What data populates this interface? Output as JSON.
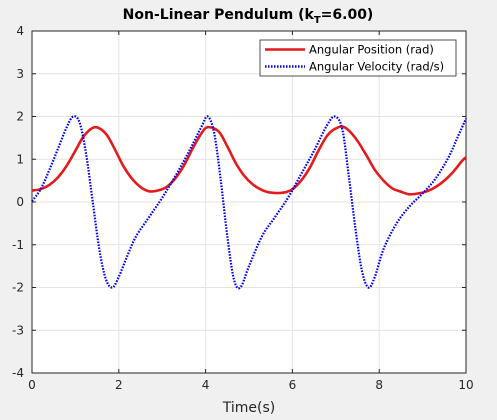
{
  "chart_data": {
    "type": "line",
    "title": "Non-Linear Pendulum (k",
    "title_subscript": "T",
    "title_suffix": "=6.00)",
    "xlabel": "Time(s)",
    "ylabel": "",
    "xlim": [
      0,
      10
    ],
    "ylim": [
      -4,
      4
    ],
    "xticks": [
      0,
      2,
      4,
      6,
      8,
      10
    ],
    "yticks": [
      -4,
      -3,
      -2,
      -1,
      0,
      1,
      2,
      3,
      4
    ],
    "grid": true,
    "legend_position": "top-right",
    "series": [
      {
        "name": "Angular Position (rad)",
        "color": "#e41a1c",
        "style": "solid",
        "x": [
          0,
          0.2,
          0.4,
          0.6,
          0.8,
          1.0,
          1.2,
          1.45,
          1.7,
          1.9,
          2.1,
          2.3,
          2.5,
          2.7,
          2.9,
          3.1,
          3.3,
          3.5,
          3.7,
          3.9,
          4.05,
          4.3,
          4.5,
          4.7,
          4.9,
          5.1,
          5.3,
          5.5,
          5.8,
          6.0,
          6.2,
          6.4,
          6.6,
          6.8,
          7.0,
          7.2,
          7.45,
          7.7,
          7.9,
          8.1,
          8.3,
          8.5,
          8.7,
          8.9,
          9.1,
          9.3,
          9.5,
          9.7,
          9.9,
          10.0
        ],
        "y": [
          0.27,
          0.3,
          0.4,
          0.58,
          0.85,
          1.2,
          1.55,
          1.75,
          1.6,
          1.25,
          0.85,
          0.55,
          0.35,
          0.25,
          0.27,
          0.35,
          0.55,
          0.85,
          1.25,
          1.6,
          1.75,
          1.65,
          1.3,
          0.9,
          0.6,
          0.4,
          0.28,
          0.22,
          0.22,
          0.3,
          0.5,
          0.8,
          1.2,
          1.55,
          1.72,
          1.75,
          1.5,
          1.1,
          0.75,
          0.5,
          0.32,
          0.24,
          0.18,
          0.2,
          0.25,
          0.35,
          0.5,
          0.7,
          0.95,
          1.05
        ]
      },
      {
        "name": "Angular Velocity (rad/s)",
        "color": "#0000ee",
        "style": "dotted",
        "x": [
          0,
          0.2,
          0.4,
          0.6,
          0.8,
          0.95,
          1.1,
          1.25,
          1.4,
          1.55,
          1.7,
          1.85,
          2.0,
          2.2,
          2.4,
          2.7,
          3.0,
          3.3,
          3.6,
          3.9,
          4.05,
          4.2,
          4.35,
          4.5,
          4.65,
          4.8,
          5.0,
          5.3,
          5.6,
          5.9,
          6.2,
          6.5,
          6.8,
          6.98,
          7.15,
          7.3,
          7.45,
          7.6,
          7.75,
          7.9,
          8.1,
          8.4,
          8.7,
          9.0,
          9.3,
          9.6,
          9.8,
          10.0
        ],
        "y": [
          0.02,
          0.3,
          0.75,
          1.25,
          1.75,
          2.0,
          1.85,
          1.1,
          0.0,
          -1.1,
          -1.8,
          -2.0,
          -1.75,
          -1.25,
          -0.8,
          -0.35,
          0.1,
          0.6,
          1.15,
          1.75,
          2.0,
          1.6,
          0.5,
          -0.8,
          -1.8,
          -2.0,
          -1.5,
          -0.8,
          -0.35,
          0.1,
          0.65,
          1.2,
          1.8,
          2.0,
          1.7,
          0.6,
          -0.6,
          -1.6,
          -2.0,
          -1.75,
          -1.1,
          -0.5,
          -0.1,
          0.2,
          0.55,
          1.05,
          1.5,
          1.95
        ]
      }
    ]
  }
}
